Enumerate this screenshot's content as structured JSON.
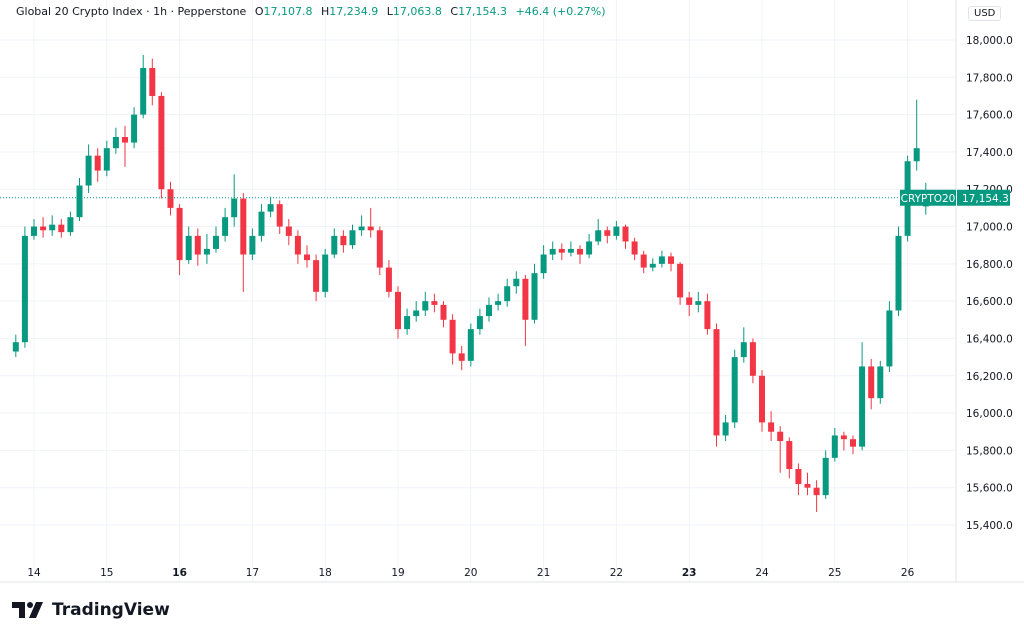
{
  "header": {
    "symbol_name": "Global 20 Crypto Index · 1h · Pepperstone",
    "open_label": "O",
    "open": "17,107.8",
    "high_label": "H",
    "high": "17,234.9",
    "low_label": "L",
    "low": "17,063.8",
    "close_label": "C",
    "close": "17,154.3",
    "change": "+46.4 (+0.27%)"
  },
  "currency": "USD",
  "price_tag": {
    "symbol": "CRYPTO20",
    "value": "17,154.3"
  },
  "brand": "TradingView",
  "colors": {
    "up": "#089981",
    "down": "#f23645",
    "grid": "#f0f3fa",
    "text": "#131722"
  },
  "chart_data": {
    "type": "candlestick",
    "interval": "1h",
    "x_ticks": [
      {
        "label": "14",
        "bold": false
      },
      {
        "label": "15",
        "bold": false
      },
      {
        "label": "16",
        "bold": true
      },
      {
        "label": "17",
        "bold": false
      },
      {
        "label": "18",
        "bold": false
      },
      {
        "label": "19",
        "bold": false
      },
      {
        "label": "20",
        "bold": false
      },
      {
        "label": "21",
        "bold": false
      },
      {
        "label": "22",
        "bold": false
      },
      {
        "label": "23",
        "bold": true
      },
      {
        "label": "24",
        "bold": false
      },
      {
        "label": "25",
        "bold": false
      },
      {
        "label": "26",
        "bold": false
      }
    ],
    "y_ticks": [
      "15,400.0",
      "15,600.0",
      "15,800.0",
      "16,000.0",
      "16,200.0",
      "16,400.0",
      "16,600.0",
      "16,800.0",
      "17,000.0",
      "17,200.0",
      "17,400.0",
      "17,600.0",
      "17,800.0",
      "18,000.0"
    ],
    "ylim": [
      15400,
      18000
    ],
    "last_price": 17154.3,
    "grid": true,
    "ohlc": [
      [
        16330,
        16420,
        16300,
        16380
      ],
      [
        16380,
        17000,
        16350,
        16950
      ],
      [
        16950,
        17040,
        16930,
        17000
      ],
      [
        17000,
        17050,
        16940,
        16980
      ],
      [
        16980,
        17060,
        16950,
        17010
      ],
      [
        17010,
        17040,
        16940,
        16970
      ],
      [
        16970,
        17080,
        16950,
        17050
      ],
      [
        17050,
        17260,
        17030,
        17220
      ],
      [
        17220,
        17440,
        17180,
        17380
      ],
      [
        17380,
        17420,
        17240,
        17300
      ],
      [
        17300,
        17460,
        17270,
        17420
      ],
      [
        17420,
        17530,
        17390,
        17480
      ],
      [
        17480,
        17540,
        17320,
        17450
      ],
      [
        17450,
        17640,
        17420,
        17600
      ],
      [
        17600,
        17920,
        17580,
        17850
      ],
      [
        17850,
        17900,
        17650,
        17700
      ],
      [
        17700,
        17720,
        17150,
        17200
      ],
      [
        17200,
        17240,
        17060,
        17100
      ],
      [
        17100,
        17120,
        16740,
        16820
      ],
      [
        16820,
        17000,
        16800,
        16950
      ],
      [
        16950,
        16990,
        16790,
        16850
      ],
      [
        16850,
        16960,
        16800,
        16880
      ],
      [
        16880,
        17000,
        16860,
        16950
      ],
      [
        16950,
        17100,
        16920,
        17050
      ],
      [
        17050,
        17280,
        17000,
        17150
      ],
      [
        17150,
        17180,
        16650,
        16850
      ],
      [
        16850,
        16990,
        16820,
        16950
      ],
      [
        16950,
        17120,
        16920,
        17080
      ],
      [
        17080,
        17160,
        17050,
        17120
      ],
      [
        17120,
        17140,
        16960,
        17000
      ],
      [
        17000,
        17040,
        16900,
        16950
      ],
      [
        16950,
        16980,
        16800,
        16850
      ],
      [
        16850,
        16900,
        16780,
        16820
      ],
      [
        16820,
        16850,
        16600,
        16650
      ],
      [
        16650,
        16880,
        16620,
        16850
      ],
      [
        16850,
        16990,
        16830,
        16950
      ],
      [
        16950,
        16980,
        16860,
        16900
      ],
      [
        16900,
        17010,
        16880,
        16980
      ],
      [
        16980,
        17060,
        16950,
        17000
      ],
      [
        17000,
        17100,
        16940,
        16980
      ],
      [
        16980,
        17000,
        16740,
        16780
      ],
      [
        16780,
        16820,
        16620,
        16650
      ],
      [
        16650,
        16680,
        16400,
        16450
      ],
      [
        16450,
        16560,
        16420,
        16520
      ],
      [
        16520,
        16600,
        16490,
        16550
      ],
      [
        16550,
        16650,
        16520,
        16600
      ],
      [
        16600,
        16640,
        16540,
        16580
      ],
      [
        16580,
        16600,
        16460,
        16500
      ],
      [
        16500,
        16530,
        16260,
        16320
      ],
      [
        16320,
        16360,
        16230,
        16280
      ],
      [
        16280,
        16480,
        16250,
        16450
      ],
      [
        16450,
        16560,
        16420,
        16520
      ],
      [
        16520,
        16620,
        16490,
        16580
      ],
      [
        16580,
        16640,
        16550,
        16600
      ],
      [
        16600,
        16720,
        16570,
        16680
      ],
      [
        16680,
        16760,
        16640,
        16720
      ],
      [
        16720,
        16740,
        16360,
        16500
      ],
      [
        16500,
        16800,
        16480,
        16750
      ],
      [
        16750,
        16900,
        16720,
        16850
      ],
      [
        16850,
        16920,
        16820,
        16880
      ],
      [
        16880,
        16910,
        16820,
        16860
      ],
      [
        16860,
        16920,
        16840,
        16880
      ],
      [
        16880,
        16900,
        16800,
        16850
      ],
      [
        16850,
        16960,
        16830,
        16920
      ],
      [
        16920,
        17040,
        16900,
        16980
      ],
      [
        16980,
        17000,
        16910,
        16950
      ],
      [
        16950,
        17030,
        16930,
        17000
      ],
      [
        17000,
        17010,
        16880,
        16920
      ],
      [
        16920,
        16940,
        16820,
        16850
      ],
      [
        16850,
        16870,
        16750,
        16780
      ],
      [
        16780,
        16830,
        16760,
        16800
      ],
      [
        16800,
        16870,
        16780,
        16840
      ],
      [
        16840,
        16860,
        16760,
        16800
      ],
      [
        16800,
        16810,
        16580,
        16620
      ],
      [
        16620,
        16650,
        16520,
        16580
      ],
      [
        16580,
        16650,
        16540,
        16600
      ],
      [
        16600,
        16640,
        16420,
        16450
      ],
      [
        16450,
        16480,
        15820,
        15880
      ],
      [
        15880,
        15990,
        15850,
        15950
      ],
      [
        15950,
        16340,
        15920,
        16300
      ],
      [
        16300,
        16460,
        16270,
        16380
      ],
      [
        16380,
        16400,
        16160,
        16200
      ],
      [
        16200,
        16230,
        15900,
        15950
      ],
      [
        15950,
        16010,
        15850,
        15900
      ],
      [
        15900,
        15930,
        15680,
        15850
      ],
      [
        15850,
        15870,
        15650,
        15700
      ],
      [
        15700,
        15730,
        15560,
        15620
      ],
      [
        15620,
        15680,
        15560,
        15600
      ],
      [
        15600,
        15640,
        15470,
        15560
      ],
      [
        15560,
        15800,
        15540,
        15760
      ],
      [
        15760,
        15920,
        15740,
        15880
      ],
      [
        15880,
        15900,
        15800,
        15860
      ],
      [
        15860,
        15880,
        15780,
        15820
      ],
      [
        15820,
        16380,
        15800,
        16250
      ],
      [
        16250,
        16290,
        16020,
        16080
      ],
      [
        16080,
        16280,
        16050,
        16250
      ],
      [
        16250,
        16600,
        16220,
        16550
      ],
      [
        16550,
        17000,
        16520,
        16950
      ],
      [
        16950,
        17380,
        16920,
        17350
      ],
      [
        17350,
        17680,
        17300,
        17420
      ],
      [
        17107.8,
        17234.9,
        17063.8,
        17154.3
      ]
    ]
  }
}
